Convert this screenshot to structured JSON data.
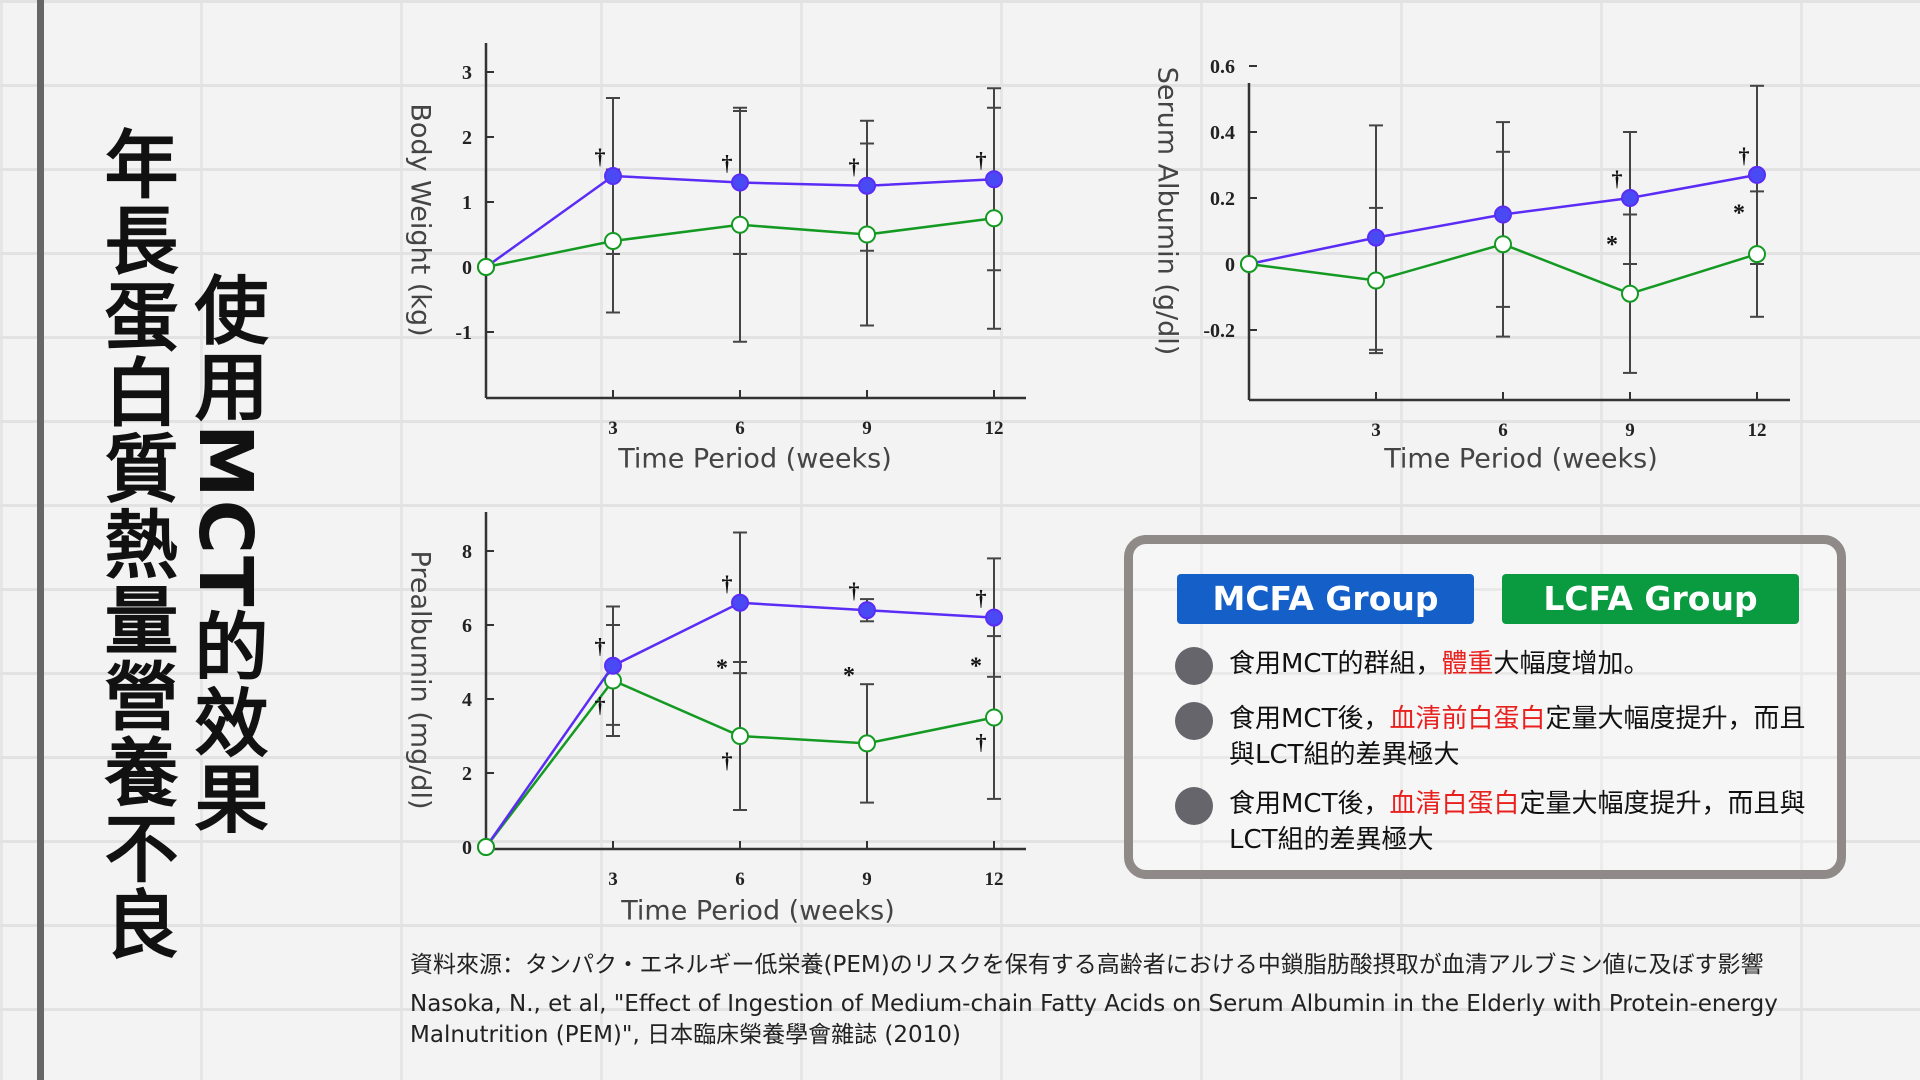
{
  "title": {
    "right_column": "使用MCT的效果",
    "left_column": "年長蛋白質熱量營養不良"
  },
  "colors": {
    "mct": "#5a2cf5",
    "mct_fill": "#4a4af5",
    "lct": "#149a22",
    "axis": "#333333",
    "mcfa_badge": "#1560c8",
    "lcfa_badge": "#0a9a40"
  },
  "chart_data": [
    {
      "type": "line",
      "title": "",
      "ylabel": "Body Weight (kg)",
      "xlabel": "Time Period (weeks)",
      "x": [
        0,
        3,
        6,
        9,
        12
      ],
      "xticks": [
        "3",
        "6",
        "9",
        "12"
      ],
      "yticks": [
        "3",
        "2",
        "1",
        "0",
        "-1"
      ],
      "ytick_values": [
        3,
        2,
        1,
        0,
        -1
      ],
      "ylim": [
        -2,
        3.5
      ],
      "series": [
        {
          "name": "MCFA",
          "values": [
            0,
            1.4,
            1.3,
            1.25,
            1.35
          ],
          "sd": [
            0,
            1.2,
            1.1,
            1.0,
            1.4
          ],
          "filled": true
        },
        {
          "name": "LCFA",
          "values": [
            0,
            0.4,
            0.65,
            0.5,
            0.75
          ],
          "sd": [
            0,
            1.1,
            1.8,
            1.4,
            1.7
          ],
          "filled": false
        }
      ],
      "annotations": [
        {
          "x": 3,
          "series": "MCFA",
          "mark": "†",
          "pos": "above"
        },
        {
          "x": 6,
          "series": "MCFA",
          "mark": "†",
          "pos": "above"
        },
        {
          "x": 9,
          "series": "MCFA",
          "mark": "†",
          "pos": "above"
        },
        {
          "x": 12,
          "series": "MCFA",
          "mark": "†",
          "pos": "above"
        }
      ]
    },
    {
      "type": "line",
      "title": "",
      "ylabel": "Serum Albumin (g/dl)",
      "xlabel": "Time Period (weeks)",
      "x": [
        0,
        3,
        6,
        9,
        12
      ],
      "xticks": [
        "3",
        "6",
        "9",
        "12"
      ],
      "yticks": [
        "0.6",
        "0.4",
        "0.2",
        "0",
        "-0.2"
      ],
      "ytick_values": [
        0.6,
        0.4,
        0.2,
        0,
        -0.2
      ],
      "ylim": [
        -0.4,
        0.55
      ],
      "series": [
        {
          "name": "MCFA",
          "values": [
            0,
            0.08,
            0.15,
            0.2,
            0.27
          ],
          "sd": [
            0,
            0.34,
            0.28,
            0.2,
            0.27
          ],
          "filled": true
        },
        {
          "name": "LCFA",
          "values": [
            0,
            -0.05,
            0.06,
            -0.09,
            0.03
          ],
          "sd": [
            0,
            0.22,
            0.28,
            0.24,
            0.19
          ],
          "filled": false
        }
      ],
      "annotations": [
        {
          "x": 9,
          "series": "MCFA",
          "mark": "†",
          "pos": "above"
        },
        {
          "x": 12,
          "series": "MCFA",
          "mark": "†",
          "pos": "above"
        },
        {
          "x": 9,
          "series": "LCFA",
          "mark": "*",
          "pos": "mid"
        },
        {
          "x": 12,
          "series": "LCFA",
          "mark": "*",
          "pos": "mid"
        }
      ]
    },
    {
      "type": "line",
      "title": "",
      "ylabel": "Prealbumin (mg/dl)",
      "xlabel": "Time Period (weeks)",
      "x": [
        0,
        3,
        6,
        9,
        12
      ],
      "xticks": [
        "3",
        "6",
        "9",
        "12"
      ],
      "yticks": [
        "8",
        "6",
        "4",
        "2",
        "0"
      ],
      "ytick_values": [
        8,
        6,
        4,
        2,
        0
      ],
      "ylim": [
        0,
        9
      ],
      "series": [
        {
          "name": "MCFA",
          "values": [
            0,
            4.9,
            6.6,
            6.4,
            6.2
          ],
          "sd": [
            0,
            1.6,
            1.9,
            0.3,
            1.6
          ],
          "filled": true
        },
        {
          "name": "LCFA",
          "values": [
            0,
            4.5,
            3.0,
            2.8,
            3.5
          ],
          "sd": [
            0,
            1.5,
            2.0,
            1.6,
            2.2
          ],
          "filled": false
        }
      ],
      "annotations": [
        {
          "x": 3,
          "series": "MCFA",
          "mark": "†",
          "pos": "above"
        },
        {
          "x": 6,
          "series": "MCFA",
          "mark": "†",
          "pos": "above"
        },
        {
          "x": 9,
          "series": "MCFA",
          "mark": "†",
          "pos": "above"
        },
        {
          "x": 12,
          "series": "MCFA",
          "mark": "†",
          "pos": "above"
        },
        {
          "x": 3,
          "series": "LCFA",
          "mark": "†",
          "pos": "below"
        },
        {
          "x": 6,
          "series": "LCFA",
          "mark": "†",
          "pos": "below"
        },
        {
          "x": 12,
          "series": "LCFA",
          "mark": "†",
          "pos": "below"
        },
        {
          "x": 6,
          "series": "LCFA",
          "mark": "*",
          "pos": "mid"
        },
        {
          "x": 9,
          "series": "LCFA",
          "mark": "*",
          "pos": "mid"
        },
        {
          "x": 12,
          "series": "LCFA",
          "mark": "*",
          "pos": "mid"
        }
      ]
    }
  ],
  "legend": {
    "mcfa_label": "MCFA  Group",
    "lcfa_label": "LCFA Group",
    "points": [
      {
        "pre": "食用MCT的群組，",
        "highlight": "體重",
        "post": "大幅度增加。"
      },
      {
        "pre": "食用MCT後，",
        "highlight": "血清前白蛋白",
        "post": "定量大幅度提升，而且與LCT組的差異極大"
      },
      {
        "pre": "食用MCT後，",
        "highlight": "血清白蛋白",
        "post": "定量大幅度提升，而且與LCT組的差異極大"
      }
    ]
  },
  "citation": {
    "line1": "資料來源：タンパク・エネルギー低栄養(PEM)のリスクを保有する高齢者における中鎖脂肪酸摂取が血清アルブミン値に及ぼす影響",
    "line2": "Nasoka, N., et al, \"Effect of Ingestion of Medium-chain Fatty Acids on Serum Albumin in the Elderly with Protein-energy Malnutrition (PEM)\", 日本臨床榮養學會雜誌 (2010)"
  }
}
